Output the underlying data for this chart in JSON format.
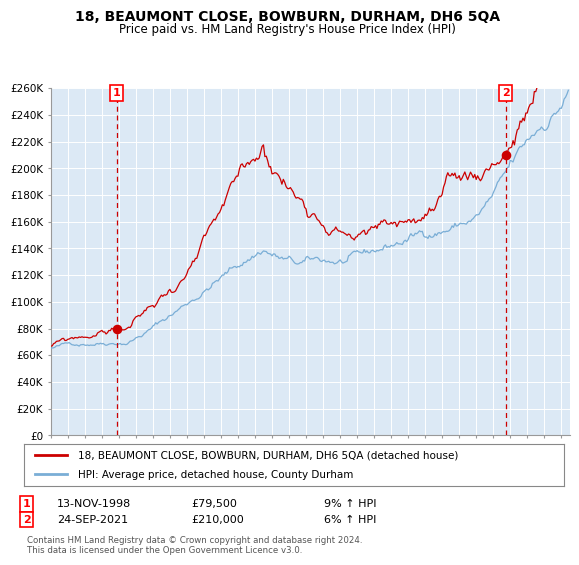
{
  "title1": "18, BEAUMONT CLOSE, BOWBURN, DURHAM, DH6 5QA",
  "title2": "Price paid vs. HM Land Registry's House Price Index (HPI)",
  "bg_color": "#dce9f5",
  "line1_color": "#cc0000",
  "line2_color": "#7aaed6",
  "vline_color": "#cc0000",
  "sale1_date_num": 1998.87,
  "sale1_price": 79500,
  "sale2_date_num": 2021.73,
  "sale2_price": 210000,
  "ylim": [
    0,
    260000
  ],
  "xlim_min": 1995.0,
  "xlim_max": 2025.5,
  "legend1": "18, BEAUMONT CLOSE, BOWBURN, DURHAM, DH6 5QA (detached house)",
  "legend2": "HPI: Average price, detached house, County Durham",
  "annot1_date": "13-NOV-1998",
  "annot1_price": "£79,500",
  "annot1_hpi": "9% ↑ HPI",
  "annot2_date": "24-SEP-2021",
  "annot2_price": "£210,000",
  "annot2_hpi": "6% ↑ HPI",
  "footer": "Contains HM Land Registry data © Crown copyright and database right 2024.\nThis data is licensed under the Open Government Licence v3.0.",
  "ytick_labels": [
    "£0",
    "£20K",
    "£40K",
    "£60K",
    "£80K",
    "£100K",
    "£120K",
    "£140K",
    "£160K",
    "£180K",
    "£200K",
    "£220K",
    "£240K",
    "£260K"
  ],
  "ytick_values": [
    0,
    20000,
    40000,
    60000,
    80000,
    100000,
    120000,
    140000,
    160000,
    180000,
    200000,
    220000,
    240000,
    260000
  ]
}
